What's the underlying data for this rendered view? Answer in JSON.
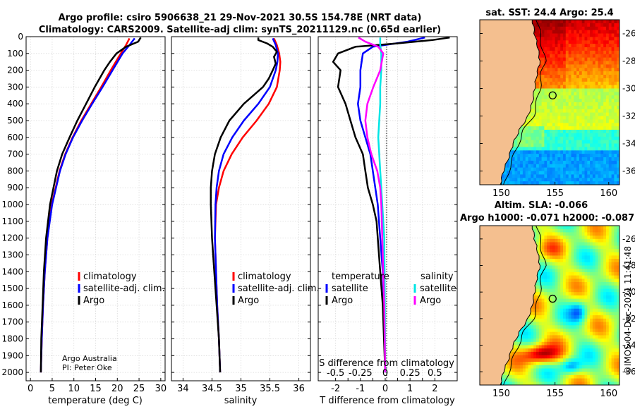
{
  "header": {
    "line1": "Argo profile: csiro 5906638_21 29-Nov-2021 30.5S 154.78E (NRT data)",
    "line2": "Climatology: CARS2009. Satellite-adj clim: synTS_20211129.nc (0.65d earlier)"
  },
  "colors": {
    "climatology": "#ff0000",
    "satellite": "#0000ff",
    "argo": "#000000",
    "sal_sat": "#00e5e5",
    "sal_argo": "#ff00ff",
    "land": "#f4bf8f"
  },
  "chart_data": [
    {
      "type": "line",
      "id": "temperature",
      "xlabel": "temperature (deg C)",
      "xlim": [
        -1,
        31
      ],
      "xticks": [
        0,
        5,
        10,
        15,
        20,
        25,
        30
      ],
      "ylim": [
        0,
        2050
      ],
      "yticks": [
        0,
        100,
        200,
        300,
        400,
        500,
        600,
        700,
        800,
        900,
        1000,
        1100,
        1200,
        1300,
        1400,
        1500,
        1600,
        1700,
        1800,
        1900,
        2000
      ],
      "legend": [
        "climatology",
        "satellite-adj. clim.",
        "Argo"
      ],
      "legend_position": "center-right",
      "annotation": [
        "Argo Australia",
        "PI: Peter Oke"
      ],
      "series": [
        {
          "name": "climatology",
          "depth": [
            10,
            50,
            100,
            200,
            300,
            400,
            500,
            600,
            700,
            800,
            1000,
            1200,
            1400,
            1600,
            1800,
            2000
          ],
          "values": [
            22.8,
            22.0,
            20.8,
            18.5,
            16.3,
            14.0,
            11.7,
            9.7,
            8.0,
            6.7,
            4.9,
            3.9,
            3.3,
            2.9,
            2.6,
            2.4
          ]
        },
        {
          "name": "satellite-adj. clim.",
          "depth": [
            10,
            50,
            100,
            200,
            300,
            400,
            500,
            600,
            700,
            800,
            1000,
            1200,
            1400,
            1600,
            1800,
            2000
          ],
          "values": [
            24.0,
            22.8,
            21.2,
            18.9,
            16.6,
            14.2,
            11.9,
            9.8,
            8.1,
            6.8,
            5.0,
            3.9,
            3.3,
            2.9,
            2.6,
            2.4
          ]
        },
        {
          "name": "Argo",
          "depth": [
            5,
            30,
            60,
            100,
            150,
            200,
            300,
            400,
            500,
            600,
            700,
            800,
            1000,
            1200,
            1400,
            1600,
            1800,
            2000
          ],
          "values": [
            25.4,
            24.8,
            22.0,
            19.8,
            18.3,
            17.0,
            14.8,
            12.8,
            10.8,
            9.0,
            7.3,
            6.1,
            4.5,
            3.6,
            3.1,
            2.8,
            2.5,
            2.4
          ]
        }
      ]
    },
    {
      "type": "line",
      "id": "salinity",
      "xlabel": "salinity",
      "xlim": [
        33.8,
        36.2
      ],
      "xticks": [
        34,
        34.5,
        35,
        35.5,
        36
      ],
      "ylim": [
        0,
        2050
      ],
      "legend": [
        "climatology",
        "satellite-adj. clim.",
        "Argo"
      ],
      "legend_position": "center-right",
      "series": [
        {
          "name": "climatology",
          "depth": [
            10,
            50,
            100,
            150,
            200,
            300,
            400,
            500,
            600,
            700,
            800,
            900,
            1000,
            1200,
            1400,
            1600,
            1800,
            2000
          ],
          "values": [
            35.57,
            35.62,
            35.66,
            35.68,
            35.67,
            35.62,
            35.48,
            35.27,
            35.03,
            34.84,
            34.7,
            34.62,
            34.57,
            34.55,
            34.57,
            34.59,
            34.62,
            34.64
          ]
        },
        {
          "name": "satellite-adj. clim.",
          "depth": [
            10,
            50,
            100,
            150,
            200,
            300,
            400,
            500,
            600,
            700,
            800,
            900,
            1000,
            1200,
            1400,
            1600,
            1800,
            2000
          ],
          "values": [
            35.55,
            35.6,
            35.64,
            35.63,
            35.6,
            35.5,
            35.3,
            35.05,
            34.85,
            34.7,
            34.62,
            34.58,
            34.56,
            34.55,
            34.57,
            34.59,
            34.62,
            34.64
          ]
        },
        {
          "name": "Argo",
          "depth": [
            5,
            20,
            40,
            60,
            90,
            120,
            160,
            200,
            250,
            300,
            400,
            500,
            600,
            700,
            800,
            900,
            1000,
            1200,
            1400,
            1600,
            1800,
            2000
          ],
          "values": [
            35.3,
            35.3,
            35.45,
            35.55,
            35.62,
            35.57,
            35.6,
            35.55,
            35.48,
            35.38,
            35.05,
            34.8,
            34.65,
            34.55,
            34.5,
            34.48,
            34.48,
            34.5,
            34.54,
            34.58,
            34.62,
            34.64
          ]
        }
      ]
    },
    {
      "type": "line",
      "id": "difference",
      "xlabel": "T difference from climatology",
      "xlabel_top": "S difference from climatology",
      "xlim": [
        -2.7,
        2.9
      ],
      "xticks": [
        -2,
        -1.5,
        -1,
        -0.5,
        0,
        0.5,
        1,
        1.5,
        2
      ],
      "xtick_labels": [
        "-2",
        "-1.5",
        "-1",
        "-0.5",
        "0",
        "0.5",
        "1",
        "1.5",
        "2"
      ],
      "s_ticks": [
        -0.5,
        -0.25,
        0,
        0.25,
        0.5
      ],
      "s_tick_labels": [
        "-0.5",
        "-0.25",
        "0",
        "0.25",
        "0.5"
      ],
      "ylim": [
        0,
        2050
      ],
      "legend_temperature_title": "temperature",
      "legend_salinity_title": "salinity",
      "legend_temperature": [
        "satellite",
        "Argo"
      ],
      "legend_salinity": [
        "satellite",
        "Argo"
      ],
      "series": [
        {
          "name": "T satellite",
          "depth": [
            5,
            30,
            60,
            100,
            200,
            300,
            400,
            500,
            600,
            700,
            800,
            1000,
            1200,
            1400,
            1600,
            2000
          ],
          "values": [
            1.6,
            0.9,
            -0.5,
            -0.9,
            -1.0,
            -1.0,
            -1.1,
            -1.0,
            -0.8,
            -0.6,
            -0.5,
            -0.3,
            -0.2,
            -0.1,
            -0.05,
            0.0
          ]
        },
        {
          "name": "T Argo",
          "depth": [
            5,
            20,
            40,
            60,
            100,
            150,
            200,
            300,
            400,
            500,
            600,
            700,
            800,
            900,
            1000,
            1100,
            1200,
            1400,
            1600,
            1800,
            2000
          ],
          "values": [
            2.6,
            1.9,
            0.5,
            -1.2,
            -1.9,
            -2.1,
            -1.8,
            -1.9,
            -1.6,
            -1.4,
            -1.2,
            -0.9,
            -0.8,
            -0.7,
            -0.5,
            -0.35,
            -0.3,
            -0.2,
            -0.1,
            -0.05,
            0.0
          ]
        },
        {
          "name": "S satellite",
          "depth": [
            5,
            50,
            100,
            200,
            300,
            400,
            500,
            600,
            700,
            800,
            1000,
            1200,
            1500,
            2000
          ],
          "values": [
            -0.05,
            -0.05,
            -0.04,
            -0.04,
            -0.05,
            -0.05,
            -0.06,
            -0.07,
            -0.06,
            -0.05,
            -0.03,
            -0.01,
            -0.005,
            0.0
          ]
        },
        {
          "name": "S Argo",
          "depth": [
            5,
            30,
            60,
            100,
            200,
            300,
            400,
            500,
            600,
            700,
            800,
            900,
            1000,
            1200,
            1400,
            1600,
            2000
          ],
          "values": [
            -0.27,
            -0.2,
            -0.07,
            -0.02,
            -0.05,
            -0.12,
            -0.18,
            -0.2,
            -0.18,
            -0.14,
            -0.08,
            -0.05,
            -0.04,
            -0.03,
            -0.02,
            -0.01,
            0.0
          ]
        }
      ]
    },
    {
      "type": "heatmap",
      "id": "sst_map",
      "title": "sat. SST: 24.4 Argo: 25.4",
      "xticks": [
        150,
        155,
        160
      ],
      "yticks": [
        -26,
        -28,
        -30,
        -32,
        -34,
        -36
      ],
      "xlim": [
        148,
        161
      ],
      "ylim": [
        -37,
        -25
      ],
      "argo_position": [
        154.78,
        -30.5
      ]
    },
    {
      "type": "heatmap",
      "id": "sla_map",
      "title_line1": "Altim. SLA: -0.066",
      "title_line2": "Argo h1000: -0.071 h2000: -0.087",
      "xticks": [
        150,
        155,
        160
      ],
      "yticks": [
        -26,
        -28,
        -30,
        -32,
        -34,
        -36
      ],
      "xlim": [
        148,
        161
      ],
      "ylim": [
        -37,
        -25
      ],
      "argo_position": [
        154.78,
        -30.5
      ]
    }
  ],
  "watermark": "©IMOS 04-Dec-2021 11:41:48"
}
